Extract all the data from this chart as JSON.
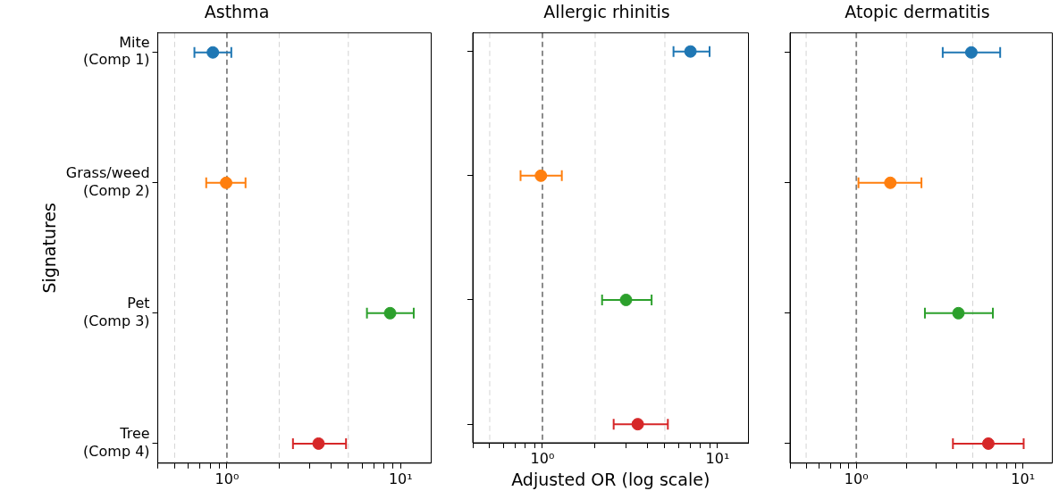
{
  "chart_data": [
    {
      "type": "scatter",
      "title": "Asthma",
      "ylabel": "Signatures",
      "orientation": "horizontal",
      "log": "x",
      "marker": "circle",
      "categories": [
        "Mite\n(Comp 1)",
        "Grass/weed\n(Comp 2)",
        "Pet\n(Comp 3)",
        "Tree\n(Comp 4)"
      ],
      "values": [
        0.83,
        0.99,
        8.7,
        3.37
      ],
      "errors": [
        [
          0.65,
          1.06
        ],
        [
          0.76,
          1.28
        ],
        [
          6.4,
          11.9
        ],
        [
          2.4,
          4.85
        ]
      ],
      "colors": [
        "#1f77b4",
        "#ff7f0e",
        "#2ca02c",
        "#d62728"
      ],
      "xlim": [
        0.4,
        15
      ],
      "xticks": [
        {
          "value": 0.4,
          "label": null
        },
        {
          "value": 0.5,
          "label": null
        },
        {
          "value": 0.6,
          "label": null
        },
        {
          "value": 0.7,
          "label": null
        },
        {
          "value": 0.8,
          "label": null
        },
        {
          "value": 0.9,
          "label": null
        },
        {
          "value": 1,
          "label": "10⁰"
        },
        {
          "value": 2,
          "label": null
        },
        {
          "value": 3,
          "label": null
        },
        {
          "value": 4,
          "label": null
        },
        {
          "value": 5,
          "label": null
        },
        {
          "value": 6,
          "label": null
        },
        {
          "value": 7,
          "label": null
        },
        {
          "value": 8,
          "label": null
        },
        {
          "value": 9,
          "label": null
        },
        {
          "value": 10,
          "label": "10¹"
        }
      ],
      "ref_lines": [
        {
          "axis": "x",
          "value": 0.5,
          "color": "#d3d3d3",
          "line_style": "dashed"
        },
        {
          "axis": "x",
          "value": 1,
          "color": "#808080",
          "line_style": "dashed"
        },
        {
          "axis": "x",
          "value": 2,
          "color": "#d3d3d3",
          "line_style": "dashed"
        },
        {
          "axis": "x",
          "value": 5,
          "color": "#d3d3d3",
          "line_style": "dashed"
        }
      ]
    },
    {
      "type": "scatter",
      "title": "Allergic rhinitis",
      "xlabel": "Adjusted OR (log scale)",
      "orientation": "horizontal",
      "log": "x",
      "marker": "circle",
      "tick_labels": "x",
      "categories": [
        null,
        null,
        null,
        null
      ],
      "values": [
        7.0,
        0.98,
        3.0,
        3.5
      ],
      "errors": [
        [
          5.6,
          9.0
        ],
        [
          0.75,
          1.29
        ],
        [
          2.19,
          4.2
        ],
        [
          2.55,
          5.2
        ]
      ],
      "colors": [
        "#1f77b4",
        "#ff7f0e",
        "#2ca02c",
        "#d62728"
      ],
      "xlim": [
        0.4,
        15
      ],
      "xticks": [
        {
          "value": 0.4,
          "label": null
        },
        {
          "value": 0.5,
          "label": null
        },
        {
          "value": 0.6,
          "label": null
        },
        {
          "value": 0.7,
          "label": null
        },
        {
          "value": 0.8,
          "label": null
        },
        {
          "value": 0.9,
          "label": null
        },
        {
          "value": 1,
          "label": "10⁰"
        },
        {
          "value": 2,
          "label": null
        },
        {
          "value": 3,
          "label": null
        },
        {
          "value": 4,
          "label": null
        },
        {
          "value": 5,
          "label": null
        },
        {
          "value": 6,
          "label": null
        },
        {
          "value": 7,
          "label": null
        },
        {
          "value": 8,
          "label": null
        },
        {
          "value": 9,
          "label": null
        },
        {
          "value": 10,
          "label": "10¹"
        }
      ],
      "ref_lines": [
        {
          "axis": "x",
          "value": 0.5,
          "color": "#d3d3d3",
          "line_style": "dashed"
        },
        {
          "axis": "x",
          "value": 1,
          "color": "#808080",
          "line_style": "dashed"
        },
        {
          "axis": "x",
          "value": 2,
          "color": "#d3d3d3",
          "line_style": "dashed"
        },
        {
          "axis": "x",
          "value": 5,
          "color": "#d3d3d3",
          "line_style": "dashed"
        }
      ]
    },
    {
      "type": "scatter",
      "title": "Atopic dermatitis",
      "orientation": "horizontal",
      "log": "x",
      "marker": "circle",
      "tick_labels": "x",
      "categories": [
        null,
        null,
        null,
        null
      ],
      "values": [
        4.9,
        1.6,
        4.1,
        6.2
      ],
      "errors": [
        [
          3.3,
          7.3
        ],
        [
          1.03,
          2.46
        ],
        [
          2.58,
          6.6
        ],
        [
          3.8,
          10.1
        ]
      ],
      "colors": [
        "#1f77b4",
        "#ff7f0e",
        "#2ca02c",
        "#d62728"
      ],
      "xlim": [
        0.4,
        15
      ],
      "xticks": [
        {
          "value": 0.4,
          "label": null
        },
        {
          "value": 0.5,
          "label": null
        },
        {
          "value": 0.6,
          "label": null
        },
        {
          "value": 0.7,
          "label": null
        },
        {
          "value": 0.8,
          "label": null
        },
        {
          "value": 0.9,
          "label": null
        },
        {
          "value": 1,
          "label": "10⁰"
        },
        {
          "value": 2,
          "label": null
        },
        {
          "value": 3,
          "label": null
        },
        {
          "value": 4,
          "label": null
        },
        {
          "value": 5,
          "label": null
        },
        {
          "value": 6,
          "label": null
        },
        {
          "value": 7,
          "label": null
        },
        {
          "value": 8,
          "label": null
        },
        {
          "value": 9,
          "label": null
        },
        {
          "value": 10,
          "label": "10¹"
        }
      ],
      "ref_lines": [
        {
          "axis": "x",
          "value": 0.5,
          "color": "#d3d3d3",
          "line_style": "dashed"
        },
        {
          "axis": "x",
          "value": 1,
          "color": "#808080",
          "line_style": "dashed"
        },
        {
          "axis": "x",
          "value": 2,
          "color": "#d3d3d3",
          "line_style": "dashed"
        },
        {
          "axis": "x",
          "value": 5,
          "color": "#d3d3d3",
          "line_style": "dashed"
        }
      ]
    }
  ]
}
